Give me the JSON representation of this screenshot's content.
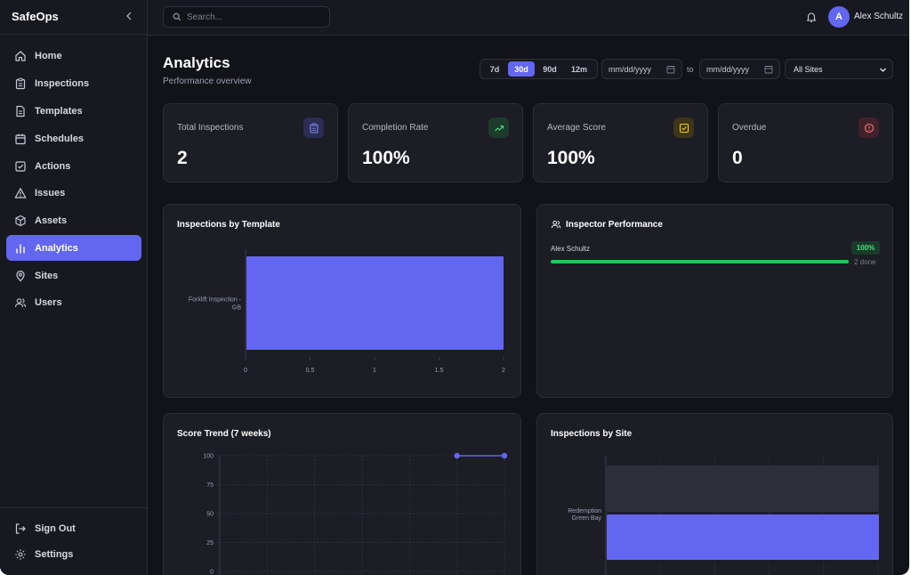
{
  "app": {
    "name": "SafeOps"
  },
  "colors": {
    "accent": "#6366f1",
    "success": "#22c55e",
    "background": "#121319",
    "card": "#1c1d25"
  },
  "sidebar": {
    "items": [
      {
        "label": "Home",
        "icon": "home-icon",
        "active": false
      },
      {
        "label": "Inspections",
        "icon": "clipboard-icon",
        "active": false
      },
      {
        "label": "Templates",
        "icon": "document-icon",
        "active": false
      },
      {
        "label": "Schedules",
        "icon": "calendar-icon",
        "active": false
      },
      {
        "label": "Actions",
        "icon": "checkbox-icon",
        "active": false
      },
      {
        "label": "Issues",
        "icon": "warning-icon",
        "active": false
      },
      {
        "label": "Assets",
        "icon": "box-icon",
        "active": false
      },
      {
        "label": "Analytics",
        "icon": "bar-chart-icon",
        "active": true
      },
      {
        "label": "Sites",
        "icon": "map-pin-icon",
        "active": false
      },
      {
        "label": "Users",
        "icon": "users-icon",
        "active": false
      }
    ],
    "bottom": [
      {
        "label": "Sign Out",
        "icon": "sign-out-icon"
      },
      {
        "label": "Settings",
        "icon": "gear-icon"
      }
    ]
  },
  "topbar": {
    "search_placeholder": "Search...",
    "user": {
      "name": "Alex Schultz",
      "initial": "A"
    }
  },
  "header": {
    "title": "Analytics",
    "subtitle": "Performance overview",
    "ranges": [
      "7d",
      "30d",
      "90d",
      "12m"
    ],
    "active_range": "30d",
    "date_from_placeholder": "mm/dd/yyyy",
    "date_to_placeholder": "mm/dd/yyyy",
    "to_label": "to",
    "site_filter": "All Sites"
  },
  "stats": [
    {
      "label": "Total Inspections",
      "value": "2",
      "icon": "clipboard-icon",
      "icon_color": "#818cf8",
      "icon_bg": "#2b2d52"
    },
    {
      "label": "Completion Rate",
      "value": "100%",
      "icon": "trending-up-icon",
      "icon_color": "#4ade80",
      "icon_bg": "#1d3a2b"
    },
    {
      "label": "Average Score",
      "value": "100%",
      "icon": "check-square-icon",
      "icon_color": "#facc15",
      "icon_bg": "#3d3519"
    },
    {
      "label": "Overdue",
      "value": "0",
      "icon": "alert-circle-icon",
      "icon_color": "#f87171",
      "icon_bg": "#42222a"
    }
  ],
  "panels": {
    "by_template": {
      "title": "Inspections by Template"
    },
    "inspector_performance": {
      "title": "Inspector Performance",
      "inspectors": [
        {
          "name": "Alex Schultz",
          "percent": "100%",
          "fraction": 1.0,
          "done": "2 done"
        }
      ]
    },
    "score_trend": {
      "title": "Score Trend (7 weeks)"
    },
    "by_site": {
      "title": "Inspections by Site"
    }
  },
  "chart_data": [
    {
      "type": "bar",
      "orientation": "horizontal",
      "title": "Inspections by Template",
      "categories": [
        "Forklift Inspection - GB"
      ],
      "values": [
        2
      ],
      "xlim": [
        0,
        2
      ],
      "xticks": [
        "0",
        "0.5",
        "1",
        "1.5",
        "2"
      ],
      "color": "#6366f1"
    },
    {
      "type": "line",
      "title": "Score Trend (7 weeks)",
      "yticks": [
        "100",
        "75",
        "50",
        "25",
        "0"
      ],
      "ylim": [
        0,
        100
      ],
      "points": [
        {
          "week_index": 6,
          "value": 100
        },
        {
          "week_index": 7,
          "value": 100
        }
      ],
      "color": "#6366f1",
      "grid": true
    },
    {
      "type": "bar",
      "orientation": "horizontal",
      "title": "Inspections by Site",
      "categories": [
        "Redemption Green Bay"
      ],
      "series": [
        {
          "values": [
            1
          ],
          "color": "#2e3039"
        },
        {
          "values": [
            1
          ],
          "color": "#6366f1"
        }
      ],
      "grid": true
    }
  ]
}
